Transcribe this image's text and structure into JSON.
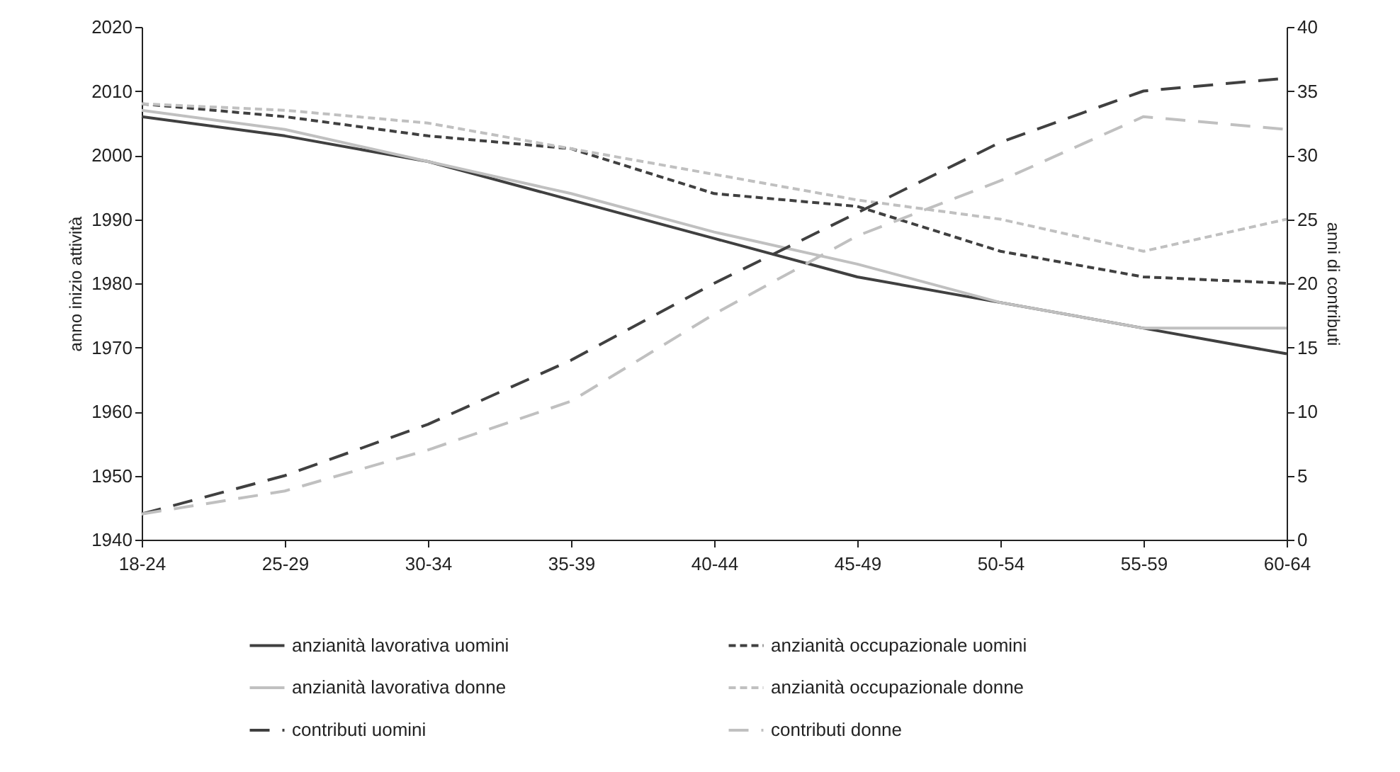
{
  "chart_data": {
    "type": "line",
    "categories": [
      "18-24",
      "25-29",
      "30-34",
      "35-39",
      "40-44",
      "45-49",
      "50-54",
      "55-59",
      "60-64"
    ],
    "ylabel": "anno inizio attività",
    "y2label": "anni di contributi",
    "ylim": [
      1940,
      2020
    ],
    "yticks": [
      1940,
      1950,
      1960,
      1970,
      1980,
      1990,
      2000,
      2010,
      2020
    ],
    "y2lim": [
      0,
      40
    ],
    "y2ticks": [
      0,
      5,
      10,
      15,
      20,
      25,
      30,
      35,
      40
    ],
    "grid": false,
    "legend": "bottom",
    "marker": "none",
    "series": [
      {
        "name": "anzianità lavorativa uomini",
        "color": "#404040",
        "line_style": "solid",
        "values": [
          2006,
          2003,
          1999,
          1993,
          1987,
          1981,
          1977,
          1973,
          1969
        ]
      },
      {
        "name": "anzianità occupazionale uomini",
        "color": "#404040",
        "line_style": "dashed",
        "values": [
          2008,
          2006,
          2003,
          2001,
          1994,
          1992,
          1985,
          1981,
          1980
        ]
      },
      {
        "name": "anzianità lavorativa donne",
        "color": "#c0c0c0",
        "line_style": "solid",
        "values": [
          2007,
          2004,
          1999,
          1994,
          1988,
          1983,
          1977,
          1973,
          1973
        ]
      },
      {
        "name": "anzianità occupazionale donne",
        "color": "#c0c0c0",
        "line_style": "dashed",
        "values": [
          2008,
          2007,
          2005,
          2001,
          1997,
          1993,
          1990,
          1985,
          1990
        ]
      },
      {
        "name": "contributi uomini",
        "color": "#404040",
        "line_style": "dashed",
        "axis": "y2",
        "values": [
          2,
          5,
          9,
          14,
          20,
          25.5,
          31,
          35,
          36
        ]
      },
      {
        "name": "contributi donne",
        "color": "#c0c0c0",
        "line_style": "dashed",
        "axis": "y2",
        "values": [
          2,
          3.8,
          7,
          10.8,
          17.6,
          23.7,
          28,
          33,
          32
        ]
      }
    ]
  }
}
